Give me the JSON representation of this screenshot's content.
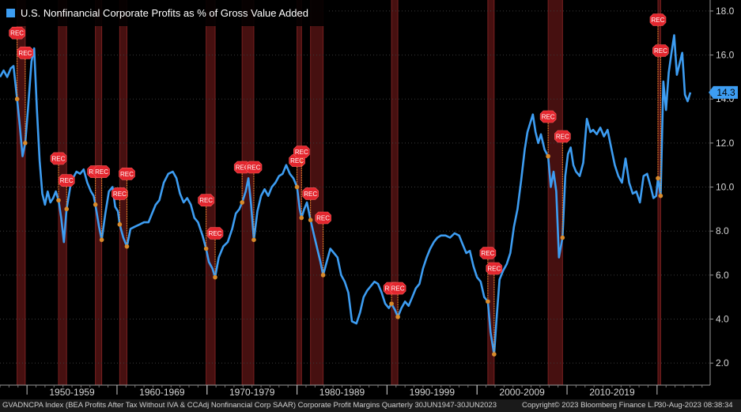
{
  "chart_data": {
    "type": "line",
    "title": "",
    "legend": {
      "label": "U.S. Nonfinancial Corporate Profits as % of Gross Value Added",
      "color": "#3d9df2",
      "placement": "top-left"
    },
    "ylim": [
      1.0,
      18.5
    ],
    "y_ticks": [
      2.0,
      4.0,
      6.0,
      8.0,
      10.0,
      12.0,
      14.0,
      16.0,
      18.0
    ],
    "y_tick_labels": [
      "2.0",
      "4.0",
      "6.0",
      "8.0",
      "10.0",
      "12.0",
      "14.0",
      "16.0",
      "18.0"
    ],
    "xlim": [
      1947.0,
      2025.9
    ],
    "x_decades": [
      {
        "label": "1950-1959",
        "start": 1950,
        "end": 1960
      },
      {
        "label": "1960-1969",
        "start": 1960,
        "end": 1970
      },
      {
        "label": "1970-1979",
        "start": 1970,
        "end": 1980
      },
      {
        "label": "1980-1989",
        "start": 1980,
        "end": 1990
      },
      {
        "label": "1990-1999",
        "start": 1990,
        "end": 2000
      },
      {
        "label": "2000-2009",
        "start": 2000,
        "end": 2010
      },
      {
        "label": "2010-2019",
        "start": 2010,
        "end": 2020
      }
    ],
    "last_value": {
      "label": "14.3",
      "value": 14.3
    },
    "recession_bands": [
      [
        1948.9,
        1949.8
      ],
      [
        1953.5,
        1954.4
      ],
      [
        1957.6,
        1958.3
      ],
      [
        1960.3,
        1961.1
      ],
      [
        1969.9,
        1970.9
      ],
      [
        1973.9,
        1975.2
      ],
      [
        1980.0,
        1980.5
      ],
      [
        1981.5,
        1982.9
      ],
      [
        1990.5,
        1991.2
      ],
      [
        2001.2,
        2001.9
      ],
      [
        2007.9,
        2009.5
      ],
      [
        2020.1,
        2020.4
      ]
    ],
    "rec_markers": [
      {
        "label": "REC",
        "x": 1948.9,
        "y_flag": 17.0,
        "y_point": 14.0
      },
      {
        "label": "REC",
        "x": 1949.8,
        "y_flag": 16.1,
        "y_point": 12.0
      },
      {
        "label": "REC",
        "x": 1953.5,
        "y_flag": 11.3,
        "y_point": 9.4
      },
      {
        "label": "REC",
        "x": 1954.4,
        "y_flag": 10.3,
        "y_point": 9.0
      },
      {
        "label": "REC",
        "x": 1957.6,
        "y_flag": 10.7,
        "y_point": 9.2
      },
      {
        "label": "REC",
        "x": 1958.3,
        "y_flag": 10.7,
        "y_point": 7.6
      },
      {
        "label": "REC",
        "x": 1960.3,
        "y_flag": 9.7,
        "y_point": 8.3
      },
      {
        "label": "REC",
        "x": 1961.1,
        "y_flag": 10.6,
        "y_point": 7.3
      },
      {
        "label": "REC",
        "x": 1969.9,
        "y_flag": 9.4,
        "y_point": 7.2
      },
      {
        "label": "REC",
        "x": 1970.9,
        "y_flag": 7.9,
        "y_point": 5.9
      },
      {
        "label": "REC",
        "x": 1973.9,
        "y_flag": 10.9,
        "y_point": 9.3
      },
      {
        "label": "REC",
        "x": 1975.2,
        "y_flag": 10.9,
        "y_point": 7.6
      },
      {
        "label": "REC",
        "x": 1980.0,
        "y_flag": 11.2,
        "y_point": 10.0
      },
      {
        "label": "REC",
        "x": 1980.5,
        "y_flag": 11.6,
        "y_point": 8.6
      },
      {
        "label": "REC",
        "x": 1981.5,
        "y_flag": 9.7,
        "y_point": 8.5
      },
      {
        "label": "REC",
        "x": 1982.9,
        "y_flag": 8.6,
        "y_point": 6.0
      },
      {
        "label": "REC",
        "x": 1990.5,
        "y_flag": 5.4,
        "y_point": 4.7
      },
      {
        "label": "REC",
        "x": 1991.2,
        "y_flag": 5.4,
        "y_point": 4.1
      },
      {
        "label": "REC",
        "x": 2001.2,
        "y_flag": 7.0,
        "y_point": 4.8
      },
      {
        "label": "REC",
        "x": 2001.9,
        "y_flag": 6.3,
        "y_point": 2.4
      },
      {
        "label": "REC",
        "x": 2007.9,
        "y_flag": 13.2,
        "y_point": 11.4
      },
      {
        "label": "REC",
        "x": 2009.5,
        "y_flag": 12.3,
        "y_point": 7.7
      },
      {
        "label": "REC",
        "x": 2020.1,
        "y_flag": 17.6,
        "y_point": 10.4
      },
      {
        "label": "REC",
        "x": 2020.4,
        "y_flag": 16.2,
        "y_point": 9.6
      }
    ],
    "series": [
      {
        "name": "U.S. Nonfinancial Corporate Profits as % of Gross Value Added",
        "color": "#3d9df2",
        "points": [
          [
            1947.0,
            15.0
          ],
          [
            1947.4,
            15.3
          ],
          [
            1947.8,
            15.0
          ],
          [
            1948.2,
            15.4
          ],
          [
            1948.5,
            15.5
          ],
          [
            1948.9,
            14.0
          ],
          [
            1949.2,
            12.8
          ],
          [
            1949.5,
            11.4
          ],
          [
            1949.8,
            12.0
          ],
          [
            1950.1,
            13.5
          ],
          [
            1950.5,
            15.7
          ],
          [
            1950.8,
            16.3
          ],
          [
            1951.1,
            13.5
          ],
          [
            1951.4,
            11.2
          ],
          [
            1951.7,
            9.7
          ],
          [
            1952.0,
            9.2
          ],
          [
            1952.3,
            9.8
          ],
          [
            1952.6,
            9.3
          ],
          [
            1952.9,
            9.5
          ],
          [
            1953.2,
            9.8
          ],
          [
            1953.5,
            9.4
          ],
          [
            1953.8,
            8.6
          ],
          [
            1954.1,
            7.5
          ],
          [
            1954.4,
            9.0
          ],
          [
            1954.8,
            10.0
          ],
          [
            1955.1,
            10.4
          ],
          [
            1955.5,
            10.7
          ],
          [
            1955.9,
            10.6
          ],
          [
            1956.3,
            10.8
          ],
          [
            1956.7,
            10.2
          ],
          [
            1957.1,
            9.8
          ],
          [
            1957.4,
            9.6
          ],
          [
            1957.6,
            9.2
          ],
          [
            1958.0,
            8.2
          ],
          [
            1958.3,
            7.6
          ],
          [
            1958.7,
            8.8
          ],
          [
            1959.1,
            9.8
          ],
          [
            1959.5,
            10.0
          ],
          [
            1959.8,
            9.1
          ],
          [
            1960.1,
            8.9
          ],
          [
            1960.3,
            8.3
          ],
          [
            1960.7,
            7.7
          ],
          [
            1961.1,
            7.3
          ],
          [
            1961.5,
            8.1
          ],
          [
            1962.0,
            8.2
          ],
          [
            1962.5,
            8.3
          ],
          [
            1963.0,
            8.4
          ],
          [
            1963.5,
            8.4
          ],
          [
            1963.9,
            8.8
          ],
          [
            1964.3,
            9.2
          ],
          [
            1964.7,
            9.4
          ],
          [
            1965.2,
            10.2
          ],
          [
            1965.7,
            10.6
          ],
          [
            1966.2,
            10.7
          ],
          [
            1966.6,
            10.4
          ],
          [
            1967.0,
            9.7
          ],
          [
            1967.4,
            9.3
          ],
          [
            1967.8,
            9.5
          ],
          [
            1968.2,
            9.2
          ],
          [
            1968.6,
            8.6
          ],
          [
            1969.0,
            8.4
          ],
          [
            1969.5,
            7.8
          ],
          [
            1969.9,
            7.2
          ],
          [
            1970.2,
            6.6
          ],
          [
            1970.6,
            6.3
          ],
          [
            1970.9,
            5.9
          ],
          [
            1971.3,
            6.8
          ],
          [
            1971.8,
            7.3
          ],
          [
            1972.3,
            7.5
          ],
          [
            1972.8,
            8.1
          ],
          [
            1973.2,
            8.8
          ],
          [
            1973.6,
            9.0
          ],
          [
            1973.9,
            9.3
          ],
          [
            1974.3,
            9.8
          ],
          [
            1974.6,
            10.4
          ],
          [
            1974.9,
            9.2
          ],
          [
            1975.2,
            7.6
          ],
          [
            1975.6,
            8.9
          ],
          [
            1976.0,
            9.6
          ],
          [
            1976.4,
            9.9
          ],
          [
            1976.8,
            9.6
          ],
          [
            1977.2,
            10.0
          ],
          [
            1977.6,
            10.2
          ],
          [
            1978.0,
            10.5
          ],
          [
            1978.4,
            10.6
          ],
          [
            1978.8,
            11.0
          ],
          [
            1979.2,
            10.6
          ],
          [
            1979.6,
            10.4
          ],
          [
            1980.0,
            10.0
          ],
          [
            1980.3,
            9.0
          ],
          [
            1980.5,
            8.6
          ],
          [
            1980.8,
            9.0
          ],
          [
            1981.1,
            9.3
          ],
          [
            1981.5,
            8.5
          ],
          [
            1981.9,
            7.8
          ],
          [
            1982.3,
            7.1
          ],
          [
            1982.6,
            6.6
          ],
          [
            1982.9,
            6.0
          ],
          [
            1983.3,
            6.6
          ],
          [
            1983.7,
            7.2
          ],
          [
            1984.1,
            7.0
          ],
          [
            1984.5,
            6.8
          ],
          [
            1984.9,
            6.0
          ],
          [
            1985.3,
            5.7
          ],
          [
            1985.7,
            5.2
          ],
          [
            1986.1,
            3.9
          ],
          [
            1986.6,
            3.8
          ],
          [
            1987.0,
            4.3
          ],
          [
            1987.4,
            5.0
          ],
          [
            1987.8,
            5.3
          ],
          [
            1988.2,
            5.5
          ],
          [
            1988.6,
            5.7
          ],
          [
            1989.0,
            5.6
          ],
          [
            1989.4,
            5.2
          ],
          [
            1989.8,
            4.7
          ],
          [
            1990.2,
            4.5
          ],
          [
            1990.5,
            4.7
          ],
          [
            1990.9,
            4.4
          ],
          [
            1991.2,
            4.1
          ],
          [
            1991.6,
            4.5
          ],
          [
            1992.0,
            4.8
          ],
          [
            1992.4,
            4.6
          ],
          [
            1992.8,
            5.0
          ],
          [
            1993.2,
            5.4
          ],
          [
            1993.6,
            5.6
          ],
          [
            1994.0,
            6.3
          ],
          [
            1994.4,
            6.8
          ],
          [
            1994.8,
            7.2
          ],
          [
            1995.2,
            7.5
          ],
          [
            1995.6,
            7.7
          ],
          [
            1996.0,
            7.8
          ],
          [
            1996.5,
            7.8
          ],
          [
            1997.0,
            7.7
          ],
          [
            1997.5,
            7.9
          ],
          [
            1998.0,
            7.8
          ],
          [
            1998.4,
            7.4
          ],
          [
            1998.8,
            7.0
          ],
          [
            1999.2,
            7.1
          ],
          [
            1999.6,
            6.4
          ],
          [
            2000.0,
            5.9
          ],
          [
            2000.4,
            5.7
          ],
          [
            2000.8,
            5.0
          ],
          [
            2001.2,
            4.8
          ],
          [
            2001.5,
            3.4
          ],
          [
            2001.9,
            2.4
          ],
          [
            2002.2,
            4.2
          ],
          [
            2002.5,
            5.8
          ],
          [
            2002.9,
            6.2
          ],
          [
            2003.3,
            6.5
          ],
          [
            2003.7,
            7.0
          ],
          [
            2004.1,
            8.2
          ],
          [
            2004.5,
            9.0
          ],
          [
            2004.9,
            10.3
          ],
          [
            2005.3,
            11.7
          ],
          [
            2005.6,
            12.5
          ],
          [
            2005.9,
            12.9
          ],
          [
            2006.2,
            13.3
          ],
          [
            2006.5,
            12.5
          ],
          [
            2006.8,
            12.0
          ],
          [
            2007.1,
            12.4
          ],
          [
            2007.5,
            11.7
          ],
          [
            2007.9,
            11.4
          ],
          [
            2008.2,
            10.0
          ],
          [
            2008.5,
            10.7
          ],
          [
            2008.8,
            9.8
          ],
          [
            2009.1,
            6.8
          ],
          [
            2009.5,
            7.7
          ],
          [
            2009.8,
            10.5
          ],
          [
            2010.1,
            11.5
          ],
          [
            2010.4,
            11.8
          ],
          [
            2010.7,
            11.0
          ],
          [
            2011.0,
            10.7
          ],
          [
            2011.4,
            10.5
          ],
          [
            2011.8,
            11.1
          ],
          [
            2012.2,
            13.1
          ],
          [
            2012.6,
            12.5
          ],
          [
            2012.9,
            12.6
          ],
          [
            2013.3,
            12.4
          ],
          [
            2013.7,
            12.7
          ],
          [
            2014.1,
            12.3
          ],
          [
            2014.5,
            12.6
          ],
          [
            2014.9,
            11.8
          ],
          [
            2015.3,
            11.0
          ],
          [
            2015.7,
            10.5
          ],
          [
            2016.1,
            10.2
          ],
          [
            2016.5,
            11.3
          ],
          [
            2016.9,
            10.2
          ],
          [
            2017.3,
            9.7
          ],
          [
            2017.7,
            9.8
          ],
          [
            2018.1,
            9.3
          ],
          [
            2018.5,
            10.5
          ],
          [
            2018.9,
            10.6
          ],
          [
            2019.3,
            10.0
          ],
          [
            2019.6,
            9.5
          ],
          [
            2019.9,
            9.6
          ],
          [
            2020.1,
            10.4
          ],
          [
            2020.4,
            9.6
          ],
          [
            2020.7,
            14.8
          ],
          [
            2021.0,
            13.5
          ],
          [
            2021.3,
            15.2
          ],
          [
            2021.6,
            16.1
          ],
          [
            2021.9,
            16.9
          ],
          [
            2022.2,
            15.1
          ],
          [
            2022.5,
            15.6
          ],
          [
            2022.8,
            16.1
          ],
          [
            2023.1,
            14.2
          ],
          [
            2023.4,
            13.9
          ],
          [
            2023.7,
            14.3
          ]
        ]
      }
    ]
  },
  "footer": {
    "left": "GVADNCPA Index (BEA Profits After Tax Without IVA & CCAdj Nonfinancial Corp SAAR) Corporate Profit Margins  Quarterly 30JUN1947-30JUN2023",
    "copyright": "Copyright© 2023 Bloomberg Finance L.P.",
    "timestamp": "30-Aug-2023 08:38:34"
  }
}
